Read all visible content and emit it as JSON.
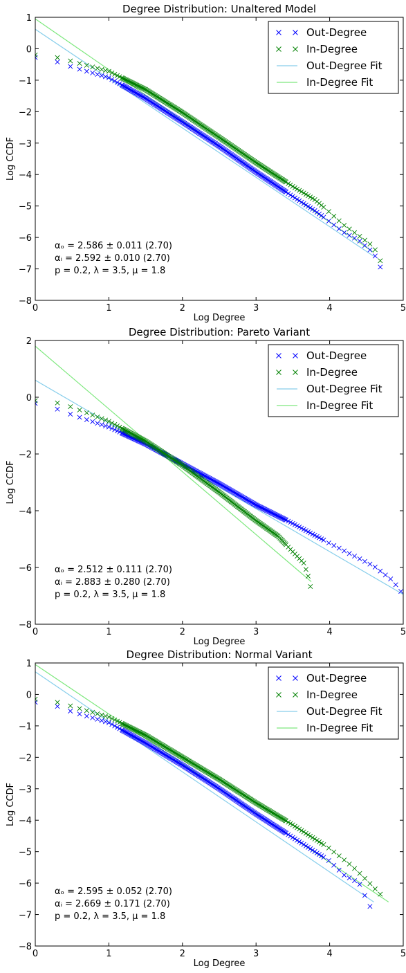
{
  "colors": {
    "out_marker": "#0000ff",
    "in_marker": "#008000",
    "out_fit": "#87ceeb",
    "in_fit": "#7ee87e"
  },
  "chart_data": [
    {
      "type": "scatter",
      "title": "Degree Distribution: Unaltered Model",
      "xlabel": "Log Degree",
      "ylabel": "Log CCDF",
      "xlim": [
        0,
        5
      ],
      "ylim": [
        -8,
        1
      ],
      "xticks": [
        "0",
        "1",
        "2",
        "3",
        "4",
        "5"
      ],
      "yticks": [
        "−8",
        "−7",
        "−6",
        "−5",
        "−4",
        "−3",
        "−2",
        "−1",
        "0",
        "1"
      ],
      "legend": {
        "position": "top-right",
        "entries": [
          "Out-Degree",
          "In-Degree",
          "Out-Degree Fit",
          "In-Degree Fit"
        ]
      },
      "annotations": {
        "alpha_o": "αₒ = 2.586 ± 0.011 (2.70)",
        "alpha_i": "αᵢ = 2.592 ± 0.010 (2.70)",
        "params": "p = 0.2, λ = 3.5, μ = 1.8"
      },
      "fits": [
        {
          "series": "Out-Degree Fit",
          "x": [
            0,
            4.6
          ],
          "y": [
            0.62,
            -6.6
          ]
        },
        {
          "series": "In-Degree Fit",
          "x": [
            0,
            4.6
          ],
          "y": [
            0.95,
            -6.48
          ]
        }
      ],
      "series": [
        {
          "name": "Out-Degree",
          "trend_x": [
            0,
            0.3,
            0.5,
            1.0,
            1.5,
            2.0,
            2.5,
            3.0,
            3.5,
            3.8,
            4.0,
            4.2,
            4.4,
            4.6,
            4.7
          ],
          "trend_y": [
            -0.28,
            -0.42,
            -0.58,
            -0.92,
            -1.58,
            -2.33,
            -3.1,
            -3.92,
            -4.7,
            -5.15,
            -5.5,
            -5.85,
            -6.1,
            -6.5,
            -7.0
          ]
        },
        {
          "name": "In-Degree",
          "trend_x": [
            0,
            0.3,
            0.5,
            1.0,
            1.5,
            2.0,
            2.5,
            3.0,
            3.5,
            3.8,
            4.0,
            4.2,
            4.4,
            4.6,
            4.7
          ],
          "trend_y": [
            -0.2,
            -0.28,
            -0.4,
            -0.72,
            -1.3,
            -2.03,
            -2.82,
            -3.62,
            -4.38,
            -4.8,
            -5.2,
            -5.62,
            -5.95,
            -6.3,
            -6.8
          ]
        }
      ]
    },
    {
      "type": "scatter",
      "title": "Degree Distribution: Pareto Variant",
      "xlabel": "Log Degree",
      "ylabel": "Log CCDF",
      "xlim": [
        0,
        5
      ],
      "ylim": [
        -8,
        2
      ],
      "xticks": [
        "0",
        "1",
        "2",
        "3",
        "4",
        "5"
      ],
      "yticks": [
        "−8",
        "−6",
        "−4",
        "−2",
        "0",
        "2"
      ],
      "legend": {
        "position": "top-right",
        "entries": [
          "Out-Degree",
          "In-Degree",
          "Out-Degree Fit",
          "In-Degree Fit"
        ]
      },
      "annotations": {
        "alpha_o": "αₒ = 2.512 ± 0.111 (2.70)",
        "alpha_i": "αᵢ = 2.883 ± 0.280 (2.70)",
        "params": "p = 0.2, λ = 3.5, μ = 1.8"
      },
      "fits": [
        {
          "series": "Out-Degree Fit",
          "x": [
            0,
            5
          ],
          "y": [
            0.6,
            -6.95
          ]
        },
        {
          "series": "In-Degree Fit",
          "x": [
            0,
            3.75
          ],
          "y": [
            1.8,
            -6.5
          ]
        }
      ],
      "series": [
        {
          "name": "Out-Degree",
          "trend_x": [
            0,
            0.3,
            0.5,
            1.0,
            1.5,
            2.0,
            2.5,
            3.0,
            3.5,
            4.0,
            4.3,
            4.6,
            4.85,
            5.0
          ],
          "trend_y": [
            -0.22,
            -0.42,
            -0.62,
            -1.05,
            -1.65,
            -2.35,
            -3.05,
            -3.8,
            -4.45,
            -5.15,
            -5.55,
            -5.95,
            -6.45,
            -6.95
          ]
        },
        {
          "name": "In-Degree",
          "trend_x": [
            0,
            0.3,
            0.5,
            1.0,
            1.5,
            2.0,
            2.5,
            3.0,
            3.3,
            3.5,
            3.65,
            3.72,
            3.75
          ],
          "trend_y": [
            -0.12,
            -0.2,
            -0.35,
            -0.85,
            -1.55,
            -2.4,
            -3.35,
            -4.35,
            -4.9,
            -5.45,
            -5.85,
            -6.4,
            -6.85
          ]
        }
      ]
    },
    {
      "type": "scatter",
      "title": "Degree Distribution: Normal Variant",
      "xlabel": "Log Degree",
      "ylabel": "Log CCDF",
      "xlim": [
        0,
        5
      ],
      "ylim": [
        -8,
        1
      ],
      "xticks": [
        "0",
        "1",
        "2",
        "3",
        "4",
        "5"
      ],
      "yticks": [
        "−8",
        "−7",
        "−6",
        "−5",
        "−4",
        "−3",
        "−2",
        "−1",
        "0",
        "1"
      ],
      "legend": {
        "position": "top-right",
        "entries": [
          "Out-Degree",
          "In-Degree",
          "Out-Degree Fit",
          "In-Degree Fit"
        ]
      },
      "annotations": {
        "alpha_o": "αₒ = 2.595 ± 0.052 (2.70)",
        "alpha_i": "αᵢ = 2.669 ± 0.171 (2.70)",
        "params": "p = 0.2, λ = 3.5, μ = 1.8"
      },
      "fits": [
        {
          "series": "Out-Degree Fit",
          "x": [
            0,
            4.6
          ],
          "y": [
            0.72,
            -6.6
          ]
        },
        {
          "series": "In-Degree Fit",
          "x": [
            0,
            4.8
          ],
          "y": [
            0.95,
            -6.6
          ]
        }
      ],
      "series": [
        {
          "name": "Out-Degree",
          "trend_x": [
            0,
            0.3,
            0.5,
            1.0,
            1.5,
            2.0,
            2.5,
            3.0,
            3.5,
            4.0,
            4.2,
            4.4,
            4.6
          ],
          "trend_y": [
            -0.25,
            -0.38,
            -0.55,
            -0.9,
            -1.55,
            -2.25,
            -3.0,
            -3.8,
            -4.55,
            -5.3,
            -5.75,
            -6.0,
            -7.0
          ]
        },
        {
          "name": "In-Degree",
          "trend_x": [
            0,
            0.3,
            0.5,
            1.0,
            1.5,
            2.0,
            2.5,
            3.0,
            3.5,
            4.0,
            4.3,
            4.5,
            4.75
          ],
          "trend_y": [
            -0.15,
            -0.25,
            -0.38,
            -0.72,
            -1.3,
            -2.0,
            -2.7,
            -3.45,
            -4.15,
            -4.9,
            -5.45,
            -5.9,
            -6.5
          ]
        }
      ]
    }
  ]
}
